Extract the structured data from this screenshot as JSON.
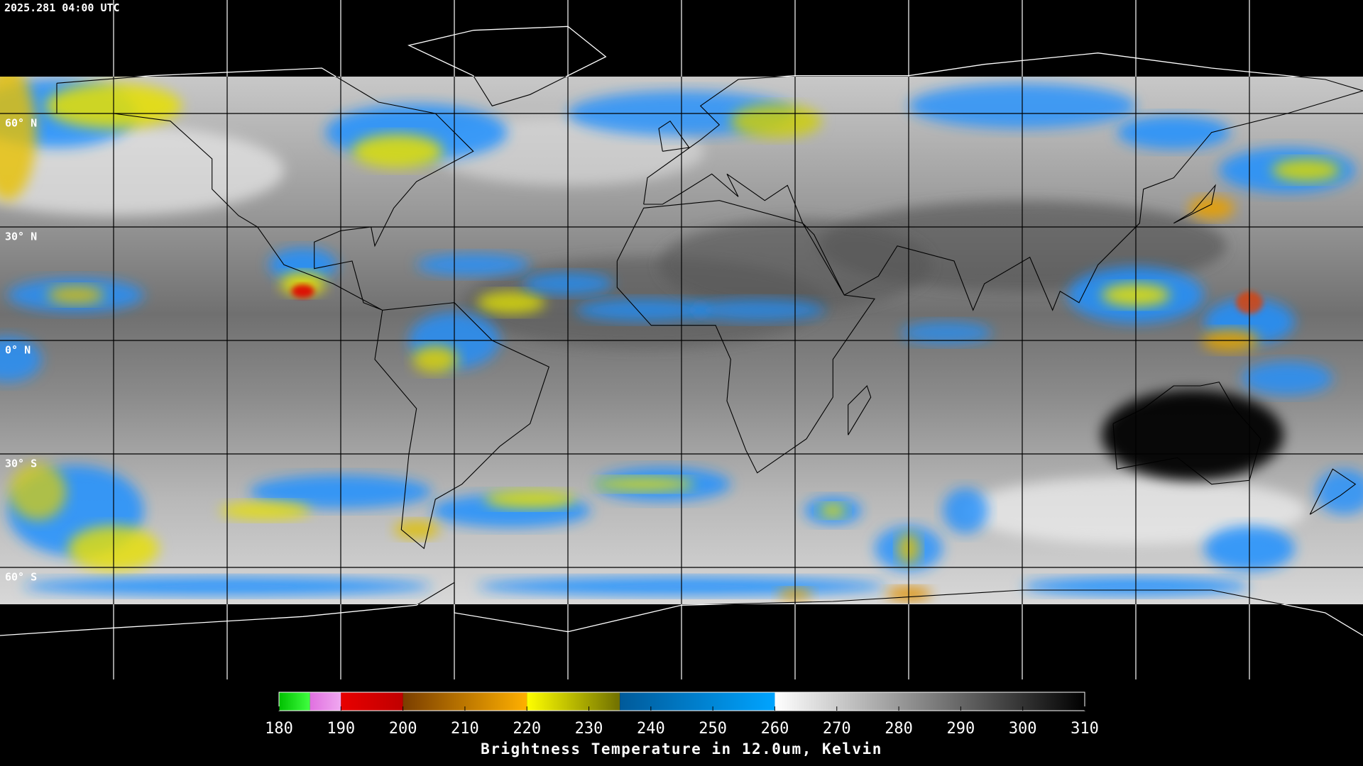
{
  "header": {
    "timestamp": "2025.281 04:00 UTC"
  },
  "map": {
    "latitude_labels": [
      "60° N",
      "30° N",
      "0° N",
      "30° S",
      "60° S"
    ]
  },
  "colorbar": {
    "title": "Brightness Temperature in 12.0um, Kelvin",
    "lim": [
      180,
      310
    ],
    "ticks": [
      180,
      190,
      200,
      210,
      220,
      230,
      240,
      250,
      260,
      270,
      280,
      290,
      300,
      310
    ],
    "segments": [
      {
        "from": 180,
        "to": 185,
        "colors": [
          "#00c000",
          "#40ff40"
        ]
      },
      {
        "from": 185,
        "to": 190,
        "colors": [
          "#e070e0",
          "#f0a8f0"
        ]
      },
      {
        "from": 190,
        "to": 200,
        "colors": [
          "#e80000",
          "#c00000"
        ]
      },
      {
        "from": 200,
        "to": 220,
        "colors": [
          "#7a3e00",
          "#ffb000"
        ]
      },
      {
        "from": 220,
        "to": 235,
        "colors": [
          "#ffff00",
          "#707000"
        ]
      },
      {
        "from": 235,
        "to": 260,
        "colors": [
          "#005a9a",
          "#00a4ff"
        ]
      },
      {
        "from": 260,
        "to": 310,
        "colors": [
          "#ffffff",
          "#000000"
        ]
      }
    ]
  }
}
